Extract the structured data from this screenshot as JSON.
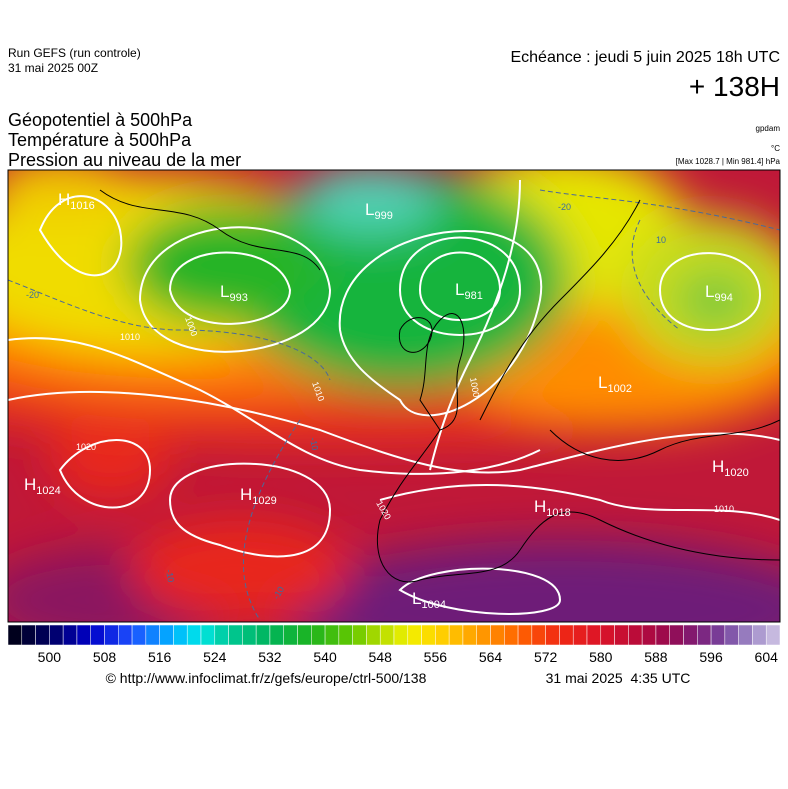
{
  "header": {
    "run": "Run GEFS (run controle)",
    "run_date": "31 mai 2025 00Z",
    "valid": "Echéance : jeudi 5 juin 2025 18h UTC",
    "lead": "+ 138H",
    "fields": [
      "Géopotentiel à 500hPa",
      "Température à 500hPa",
      "Pression au niveau de la mer"
    ],
    "units": [
      "gpdam",
      "°C",
      "[Max 1028.7 | Min 981.4] hPa"
    ]
  },
  "map": {
    "centers": [
      {
        "type": "H",
        "value": "1016"
      },
      {
        "type": "L",
        "value": "999"
      },
      {
        "type": "L",
        "value": "993"
      },
      {
        "type": "L",
        "value": "981"
      },
      {
        "type": "L",
        "value": "994"
      },
      {
        "type": "L",
        "value": "1002"
      },
      {
        "type": "H",
        "value": "1024"
      },
      {
        "type": "H",
        "value": "1029"
      },
      {
        "type": "H",
        "value": "1018"
      },
      {
        "type": "H",
        "value": "1020"
      },
      {
        "type": "L",
        "value": "1004"
      }
    ],
    "isobar_labels": [
      "1000",
      "1010",
      "1020",
      "1020",
      "1000",
      "1010",
      "1010"
    ],
    "isotherm_labels": [
      "-20",
      "-20",
      "-10",
      "-10",
      "-10",
      "10"
    ]
  },
  "colorbar": {
    "range": [
      494,
      606
    ],
    "step": 2,
    "ticks": [
      500,
      508,
      516,
      524,
      532,
      540,
      548,
      556,
      564,
      572,
      580,
      588,
      596,
      604
    ],
    "colors": [
      [
        494,
        "#000010"
      ],
      [
        500,
        "#000060"
      ],
      [
        506,
        "#0000c8"
      ],
      [
        512,
        "#1e50ff"
      ],
      [
        518,
        "#00b4ff"
      ],
      [
        522,
        "#00e6e6"
      ],
      [
        526,
        "#00c896"
      ],
      [
        532,
        "#00b45a"
      ],
      [
        538,
        "#1eb41e"
      ],
      [
        544,
        "#64c800"
      ],
      [
        548,
        "#b4dc00"
      ],
      [
        552,
        "#f0f000"
      ],
      [
        556,
        "#ffd700"
      ],
      [
        562,
        "#ffa000"
      ],
      [
        568,
        "#ff6400"
      ],
      [
        574,
        "#f02814"
      ],
      [
        580,
        "#dc1428"
      ],
      [
        586,
        "#b40a3c"
      ],
      [
        590,
        "#960a50"
      ],
      [
        594,
        "#7d1e78"
      ],
      [
        598,
        "#7846a0"
      ],
      [
        602,
        "#a08cc8"
      ],
      [
        606,
        "#d2c8e6"
      ]
    ]
  },
  "footer": {
    "source": "© http://www.infoclimat.fr/z/gefs/europe/ctrl-500/138",
    "generated": "31 mai 2025  4:35 UTC"
  }
}
